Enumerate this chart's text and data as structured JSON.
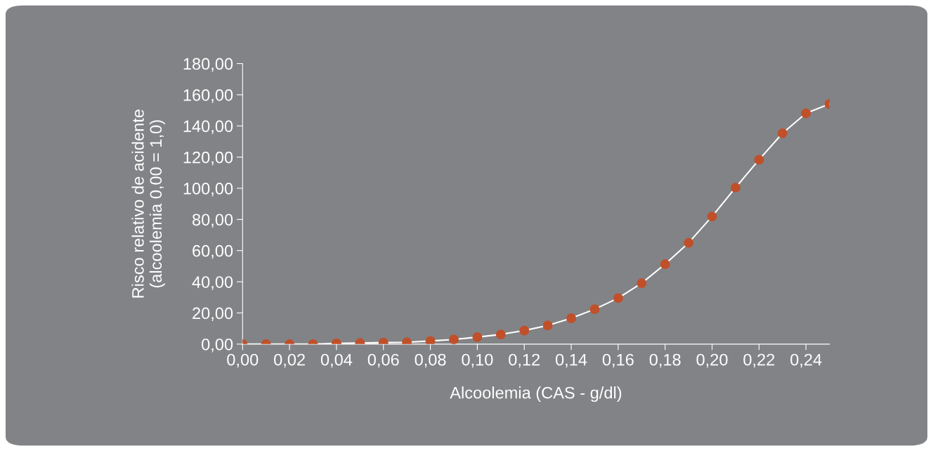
{
  "chart_data": {
    "type": "line",
    "xlabel": "Alcoolemia (CAS - g/dl)",
    "ylabel": "Risco relativo de acidente\n(alcoolemia 0,00 = 1,0)",
    "x": [
      0.0,
      0.01,
      0.02,
      0.03,
      0.04,
      0.05,
      0.06,
      0.07,
      0.08,
      0.09,
      0.1,
      0.11,
      0.12,
      0.13,
      0.14,
      0.15,
      0.16,
      0.17,
      0.18,
      0.19,
      0.2,
      0.21,
      0.22,
      0.23,
      0.24,
      0.25
    ],
    "series": [
      {
        "color": "#c0502a",
        "values": [
          0,
          0,
          0,
          0,
          0.5,
          0.7,
          1,
          1.2,
          2,
          3,
          4.5,
          6.2,
          8.7,
          12,
          16.6,
          22.4,
          29.5,
          39.1,
          51.3,
          65,
          81.9,
          100.4,
          118.3,
          135.3,
          148.1,
          154.1
        ]
      }
    ],
    "xlim": [
      0,
      0.25
    ],
    "ylim": [
      0,
      180
    ],
    "xticks": [
      {
        "value": 0,
        "label": "0,00"
      },
      {
        "value": 0.02,
        "label": "0,02"
      },
      {
        "value": 0.04,
        "label": "0,04"
      },
      {
        "value": 0.06,
        "label": "0,06"
      },
      {
        "value": 0.08,
        "label": "0,08"
      },
      {
        "value": 0.1,
        "label": "0,10"
      },
      {
        "value": 0.12,
        "label": "0,12"
      },
      {
        "value": 0.14,
        "label": "0,14"
      },
      {
        "value": 0.16,
        "label": "0,16"
      },
      {
        "value": 0.18,
        "label": "0,18"
      },
      {
        "value": 0.2,
        "label": "0,20"
      },
      {
        "value": 0.22,
        "label": "0,22"
      },
      {
        "value": 0.24,
        "label": "0,24"
      }
    ],
    "yticks": [
      {
        "value": 0,
        "label": "0,00"
      },
      {
        "value": 20,
        "label": "20,00"
      },
      {
        "value": 40,
        "label": "40,00"
      },
      {
        "value": 60,
        "label": "60,00"
      },
      {
        "value": 80,
        "label": "80,00"
      },
      {
        "value": 100,
        "label": "100,00"
      },
      {
        "value": 120,
        "label": "120,00"
      },
      {
        "value": 140,
        "label": "140,00"
      },
      {
        "value": 160,
        "label": "160,00"
      },
      {
        "value": 180,
        "label": "180,00"
      }
    ],
    "grid": false,
    "legend": false,
    "marker": "circle",
    "line_style": "solid"
  }
}
